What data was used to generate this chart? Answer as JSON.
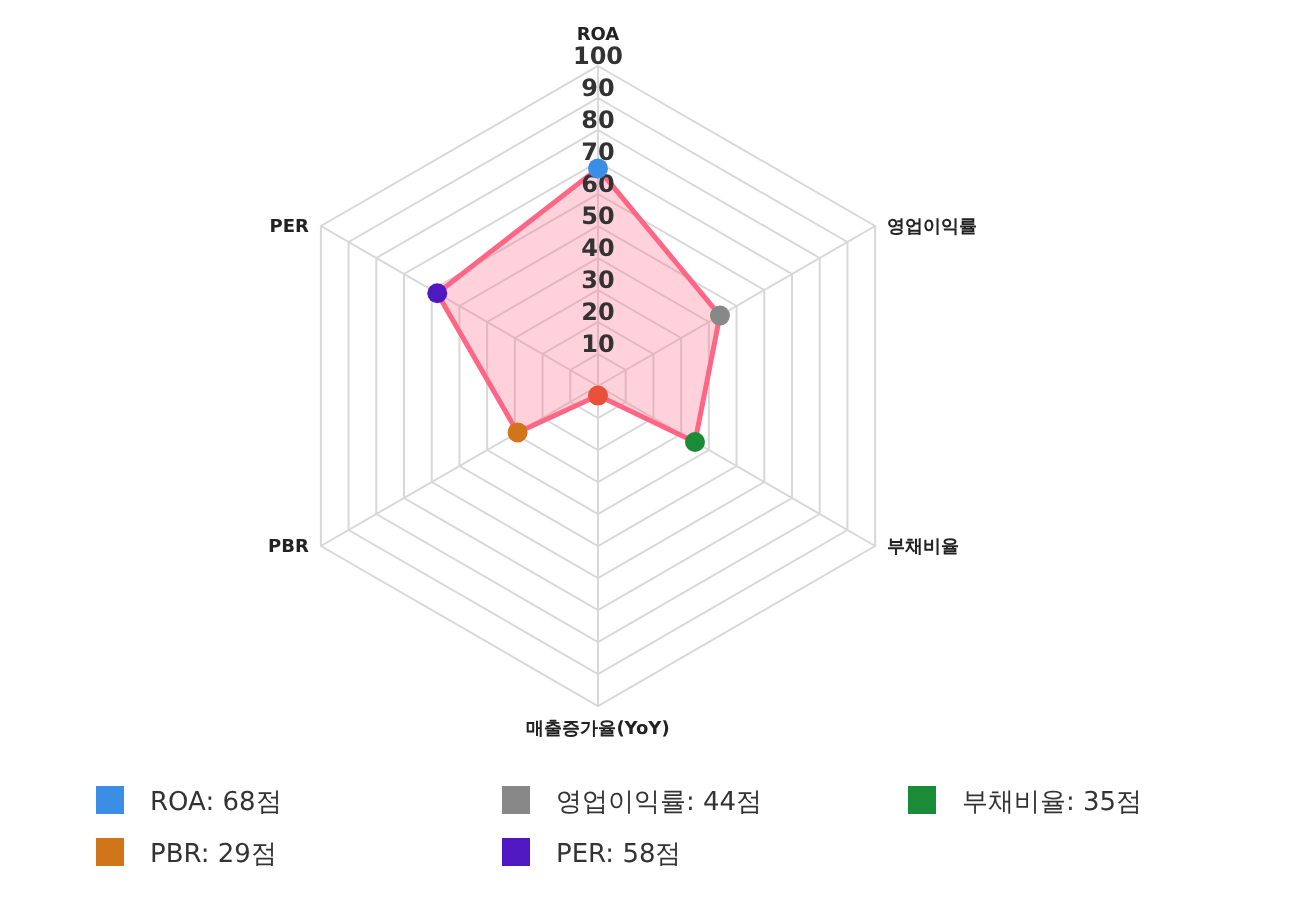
{
  "chart_data": {
    "type": "radar",
    "categories": [
      "ROA",
      "영업이익률",
      "부채비율",
      "매출증가율(YoY)",
      "PBR",
      "PER"
    ],
    "series": [
      {
        "color": "#ff6685",
        "values": [
          68,
          44,
          35,
          3,
          29,
          58
        ]
      }
    ],
    "colors": [
      "#3a8ee6",
      "#888888",
      "#1a8c37",
      "#e8503a",
      "#d0751a",
      "#5018c0"
    ],
    "ylim": [
      0,
      100
    ],
    "yticks": [
      10,
      20,
      30,
      40,
      50,
      60,
      70,
      80,
      90,
      100
    ],
    "grid": true,
    "marker": "circle",
    "annotations": [
      {
        "text": "ROA: 68점",
        "x": "ROA"
      },
      {
        "text": "영업이익률: 44점",
        "x": "영업이익률"
      },
      {
        "text": "부채비율: 35점",
        "x": "부채비율"
      },
      {
        "text": "PBR: 29점",
        "x": "PBR"
      },
      {
        "text": "PER: 58점",
        "x": "PER"
      }
    ]
  }
}
